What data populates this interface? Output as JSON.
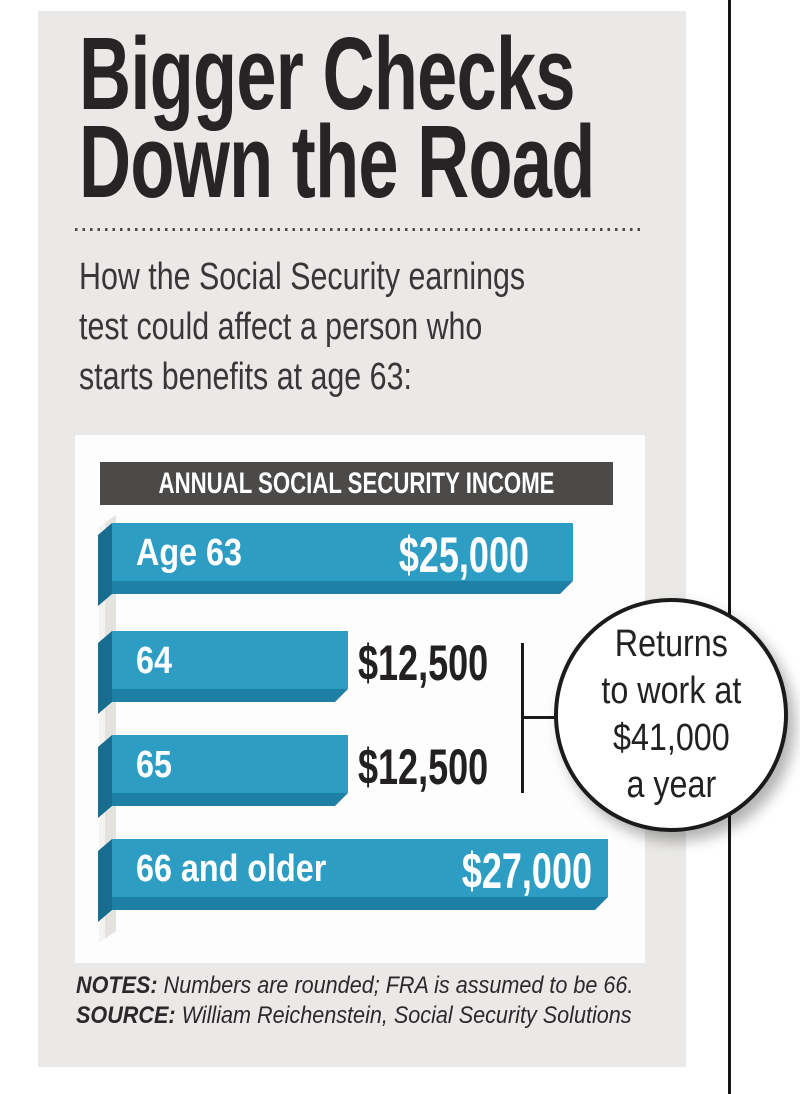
{
  "header": {
    "title_line1": "Bigger Checks",
    "title_line2": "Down the Road",
    "subtitle": "How the Social Security earnings\ntest could affect a person who\nstarts benefits at age 63:"
  },
  "chart_data": {
    "type": "bar",
    "title": "ANNUAL SOCIAL SECURITY INCOME",
    "categories": [
      "Age 63",
      "64",
      "65",
      "66 and older"
    ],
    "values": [
      25000,
      12500,
      12500,
      27000
    ],
    "value_labels": [
      "$25,000",
      "$12,500",
      "$12,500",
      "$27,000"
    ],
    "value_inside": [
      true,
      false,
      false,
      true
    ],
    "orientation": "horizontal",
    "annotation": "Returns to work at $41,000 a year",
    "annotation_lines": "Returns\nto work at\n$41,000\na year",
    "annotation_applies_to": [
      "64",
      "65"
    ]
  },
  "notes": {
    "notes_label": "NOTES:",
    "notes_text": " Numbers are rounded; FRA is assumed to be 66.",
    "source_label": "SOURCE:",
    "source_text": " William Reichenstein, Social Security Solutions"
  },
  "colors": {
    "panel_bg": "#eae9e7",
    "chart_box_bg": "#fdfdfd",
    "header_bar_bg": "#4c4a49",
    "bar_main": "#2d9dc4",
    "bar_depth": "#1f80a5",
    "bar_bevel": "#176d90",
    "text_dark": "#232021",
    "rule_black": "#161616"
  }
}
